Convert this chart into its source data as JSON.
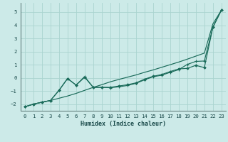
{
  "xlabel": "Humidex (Indice chaleur)",
  "bg_color": "#cceae8",
  "grid_color": "#aad4d0",
  "line_color": "#1a6b5a",
  "xlim": [
    -0.5,
    23.5
  ],
  "ylim": [
    -2.5,
    5.7
  ],
  "xticks": [
    0,
    1,
    2,
    3,
    4,
    5,
    6,
    7,
    8,
    9,
    10,
    11,
    12,
    13,
    14,
    15,
    16,
    17,
    18,
    19,
    20,
    21,
    22,
    23
  ],
  "yticks": [
    -2,
    -1,
    0,
    1,
    2,
    3,
    4,
    5
  ],
  "line1_x": [
    0,
    1,
    2,
    3,
    4,
    5,
    6,
    7,
    8,
    9,
    10,
    11,
    12,
    13,
    14,
    15,
    16,
    17,
    18,
    19,
    20,
    21,
    22,
    23
  ],
  "line1_y": [
    -2.2,
    -2.0,
    -1.85,
    -1.72,
    -1.55,
    -1.38,
    -1.18,
    -0.95,
    -0.72,
    -0.52,
    -0.3,
    -0.12,
    0.05,
    0.22,
    0.42,
    0.6,
    0.8,
    1.0,
    1.2,
    1.42,
    1.65,
    1.88,
    4.1,
    5.15
  ],
  "line2_x": [
    0,
    1,
    2,
    3,
    4,
    5,
    6,
    7,
    8,
    9,
    10,
    11,
    12,
    13,
    14,
    15,
    16,
    17,
    18,
    19,
    20,
    21,
    22,
    23
  ],
  "line2_y": [
    -2.2,
    -2.0,
    -1.85,
    -1.72,
    -0.95,
    -0.05,
    -0.55,
    0.1,
    -0.72,
    -0.72,
    -0.75,
    -0.68,
    -0.58,
    -0.42,
    -0.15,
    0.08,
    0.2,
    0.42,
    0.62,
    1.02,
    1.25,
    1.28,
    3.85,
    5.15
  ],
  "line3_x": [
    0,
    1,
    2,
    3,
    4,
    5,
    6,
    7,
    8,
    9,
    10,
    11,
    12,
    13,
    14,
    15,
    16,
    17,
    18,
    19,
    20,
    21,
    22,
    23
  ],
  "line3_y": [
    -2.2,
    -2.0,
    -1.85,
    -1.72,
    -0.95,
    -0.05,
    -0.55,
    0.05,
    -0.72,
    -0.72,
    -0.72,
    -0.62,
    -0.52,
    -0.38,
    -0.1,
    0.12,
    0.25,
    0.48,
    0.68,
    0.72,
    0.95,
    0.78,
    3.85,
    5.15
  ]
}
